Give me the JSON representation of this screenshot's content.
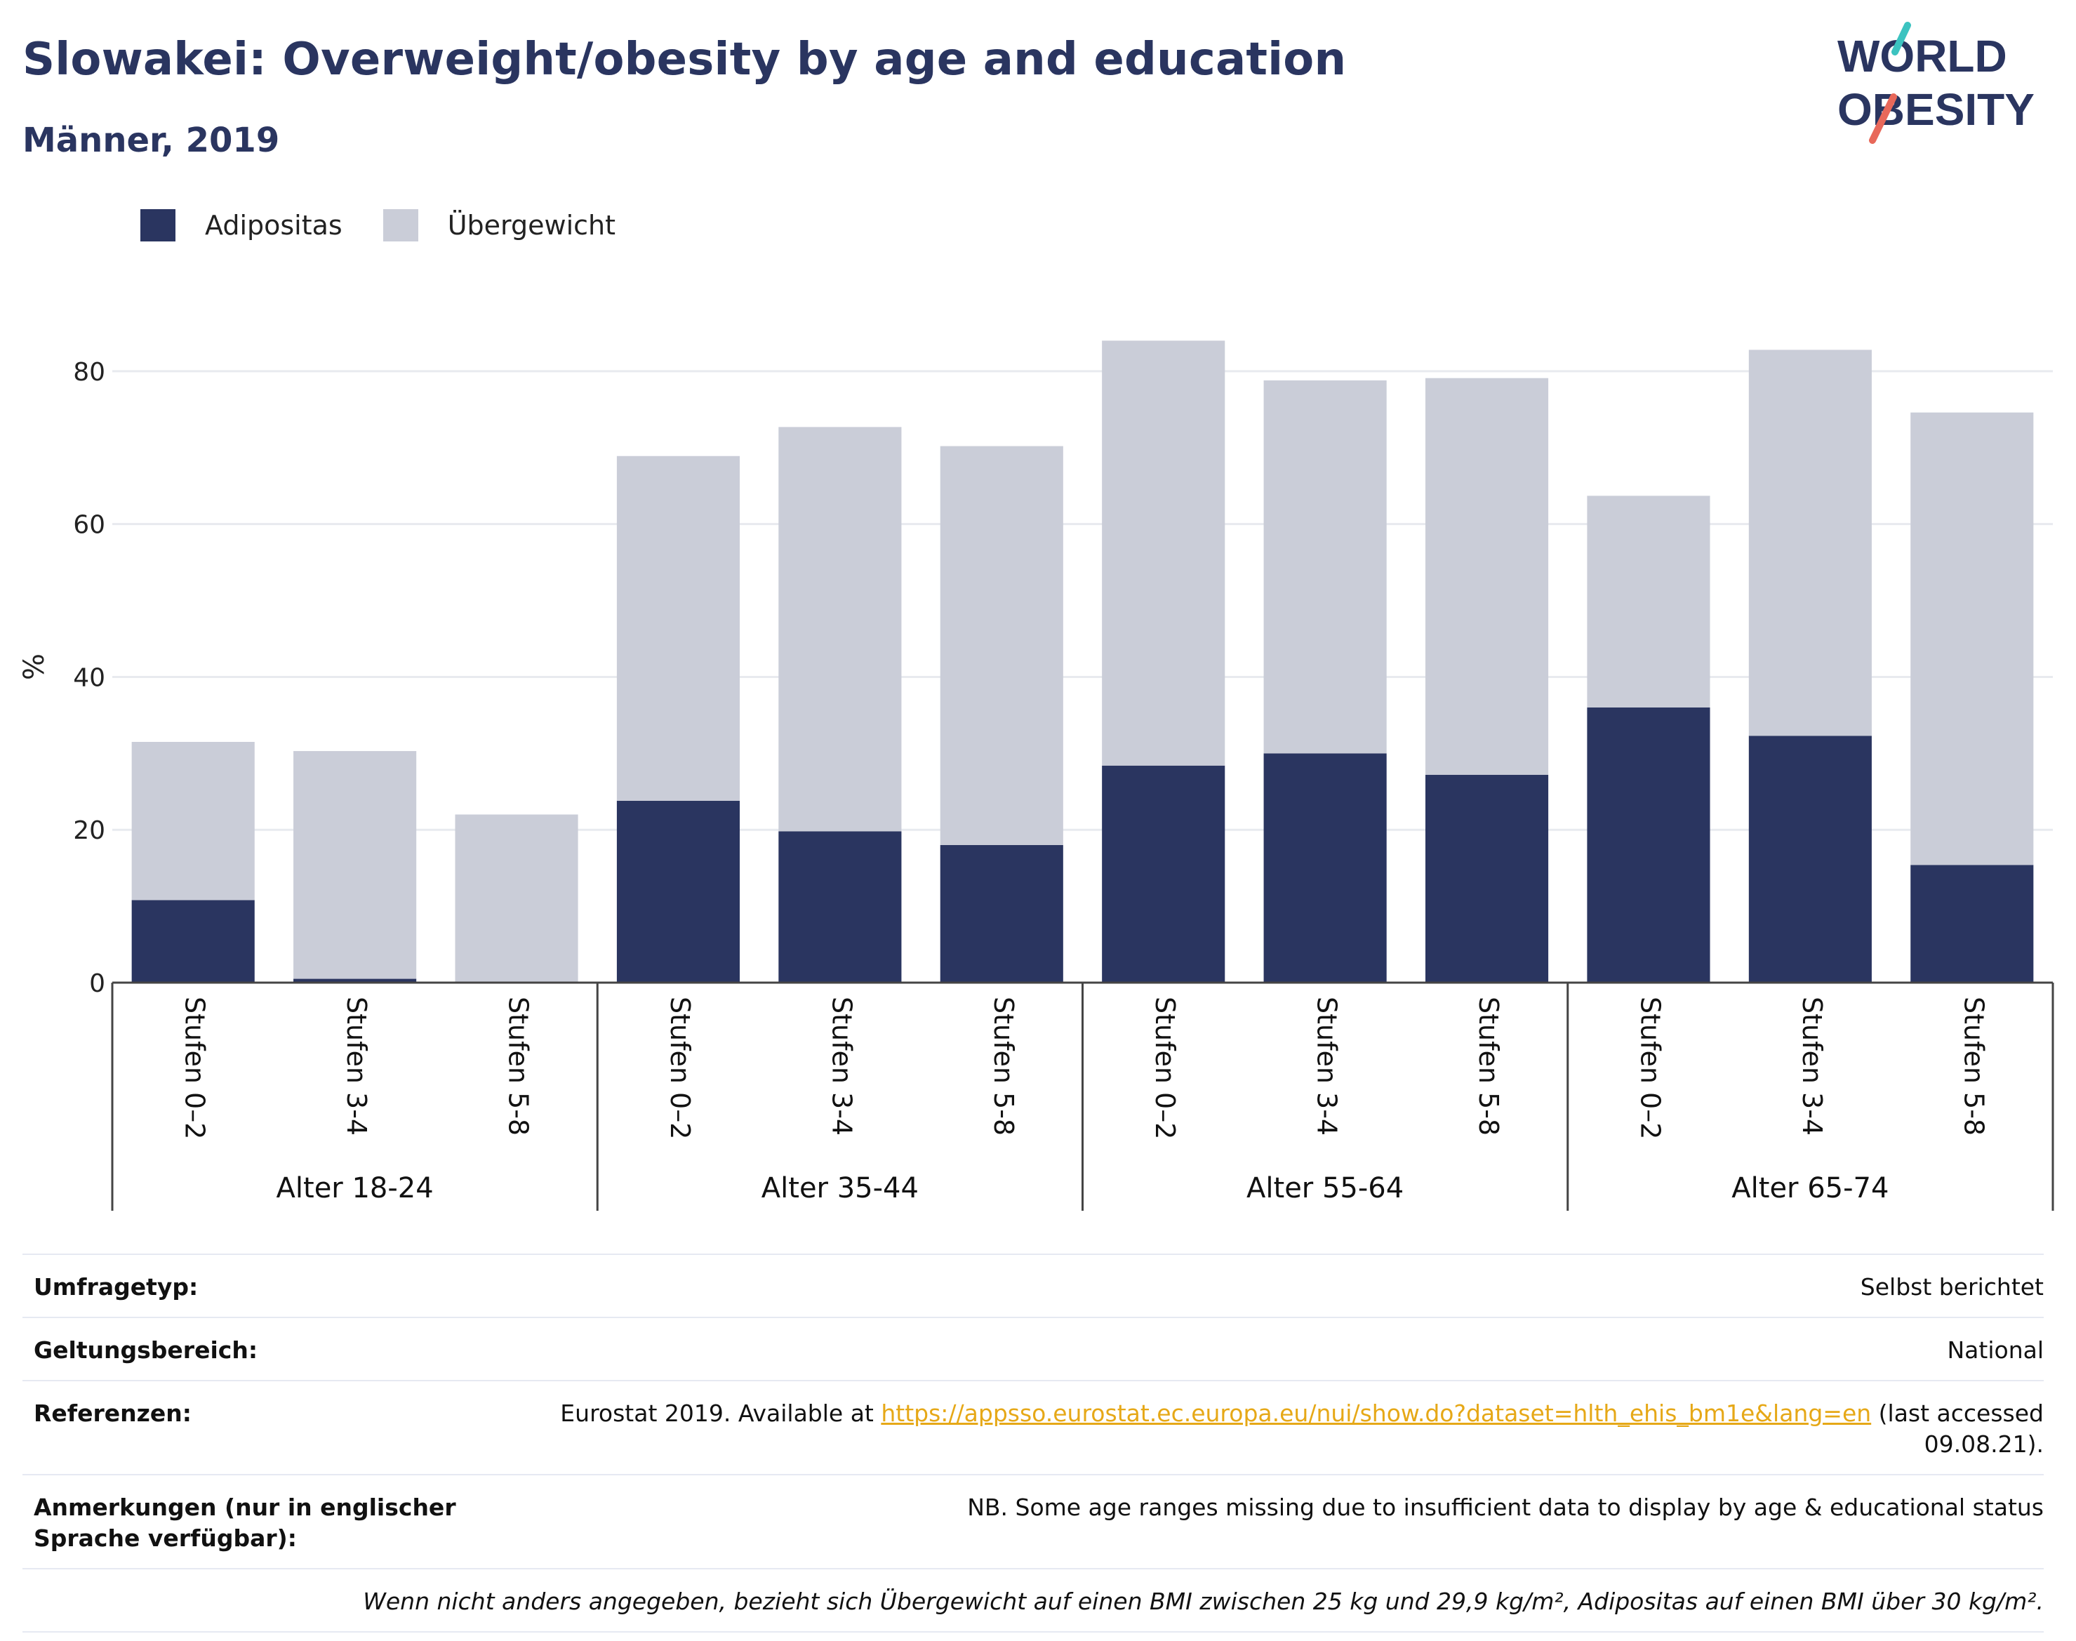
{
  "header": {
    "title": "Slowakei: Overweight/obesity by age and education",
    "subtitle": "Männer, 2019",
    "logo_line1": "WORLD",
    "logo_line2": "OBESITY"
  },
  "colors": {
    "obesity": "#2a3560",
    "overweight": "#cacdd8",
    "title": "#2a3560",
    "link": "#e6a817",
    "logo_teal": "#3cc3c0",
    "logo_coral": "#e8685a"
  },
  "legend": [
    {
      "label": "Adipositas",
      "color": "#2a3560"
    },
    {
      "label": "Übergewicht",
      "color": "#cacdd8"
    }
  ],
  "chart_data": {
    "type": "bar",
    "stacked": true,
    "ylabel": "%",
    "ylim": [
      0,
      90
    ],
    "yticks": [
      0,
      20,
      40,
      60,
      80
    ],
    "grid": true,
    "groups": [
      "Alter 18-24",
      "Alter 35-44",
      "Alter 55-64",
      "Alter 65-74"
    ],
    "categories": [
      "Stufen 0–2",
      "Stufen 3-4",
      "Stufen 5-8",
      "Stufen 0–2",
      "Stufen 3-4",
      "Stufen 5-8",
      "Stufen 0–2",
      "Stufen 3-4",
      "Stufen 5-8",
      "Stufen 0–2",
      "Stufen 3-4",
      "Stufen 5-8"
    ],
    "series": [
      {
        "name": "Adipositas",
        "values": [
          10.8,
          0.5,
          0,
          23.8,
          19.8,
          18.0,
          28.4,
          30.0,
          27.2,
          36.0,
          32.3,
          15.4
        ]
      },
      {
        "name": "Übergewicht",
        "values": [
          20.7,
          29.8,
          22.0,
          45.1,
          52.9,
          52.2,
          55.6,
          48.8,
          51.9,
          27.7,
          50.5,
          59.2
        ]
      }
    ]
  },
  "info": {
    "survey_type_label": "Umfragetyp:",
    "survey_type_value": "Selbst berichtet",
    "coverage_label": "Geltungsbereich:",
    "coverage_value": "National",
    "references_label": "Referenzen:",
    "references_prefix": "Eurostat 2019. Available at ",
    "references_link": "https://appsso.eurostat.ec.europa.eu/nui/show.do?dataset=hlth_ehis_bm1e&lang=en",
    "references_suffix": " (last accessed 09.08.21).",
    "notes_label": "Anmerkungen (nur in englischer Sprache verfügbar):",
    "notes_value": "NB. Some age ranges missing due to insufficient data to display by age & educational status",
    "definition_note": "Wenn nicht anders angegeben, bezieht sich Übergewicht auf einen BMI zwischen 25 kg und 29,9 kg/m², Adipositas auf einen BMI über 30 kg/m²."
  }
}
